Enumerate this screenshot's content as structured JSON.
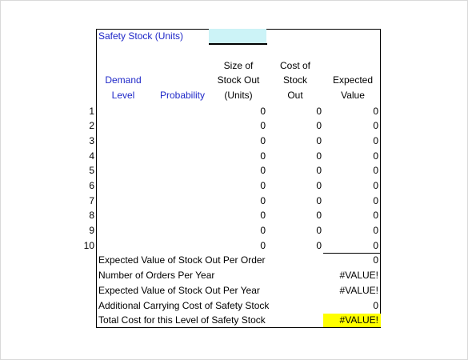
{
  "sheet": {
    "safety_stock_label": "Safety Stock (Units)",
    "headers": {
      "demand_level": [
        "Demand",
        "Level"
      ],
      "probability": "Probability",
      "size_stock_out": [
        "Size of",
        "Stock Out",
        "(Units)"
      ],
      "cost_stock_out": [
        "Cost of",
        "Stock",
        "Out"
      ],
      "expected_value": [
        "Expected",
        "Value"
      ]
    },
    "rows": [
      {
        "num": "1",
        "size": "0",
        "cost": "0",
        "expected": "0"
      },
      {
        "num": "2",
        "size": "0",
        "cost": "0",
        "expected": "0"
      },
      {
        "num": "3",
        "size": "0",
        "cost": "0",
        "expected": "0"
      },
      {
        "num": "4",
        "size": "0",
        "cost": "0",
        "expected": "0"
      },
      {
        "num": "5",
        "size": "0",
        "cost": "0",
        "expected": "0"
      },
      {
        "num": "6",
        "size": "0",
        "cost": "0",
        "expected": "0"
      },
      {
        "num": "7",
        "size": "0",
        "cost": "0",
        "expected": "0"
      },
      {
        "num": "8",
        "size": "0",
        "cost": "0",
        "expected": "0"
      },
      {
        "num": "9",
        "size": "0",
        "cost": "0",
        "expected": "0"
      },
      {
        "num": "10",
        "size": "0",
        "cost": "0",
        "expected": "0"
      }
    ],
    "summary": [
      {
        "label": "Expected Value of Stock Out Per Order",
        "value": "0"
      },
      {
        "label": "Number of Orders Per Year",
        "value": "#VALUE!"
      },
      {
        "label": "Expected Value of Stock Out Per Year",
        "value": "#VALUE!"
      },
      {
        "label": "Additional Carrying Cost of Safety Stock",
        "value": "0"
      },
      {
        "label": "Total Cost for this Level of Safety Stock",
        "value": "#VALUE!"
      }
    ],
    "colors": {
      "input_cell": "#ccf3f7",
      "highlight": "#ffff00",
      "header_text": "#1f28c8"
    }
  }
}
